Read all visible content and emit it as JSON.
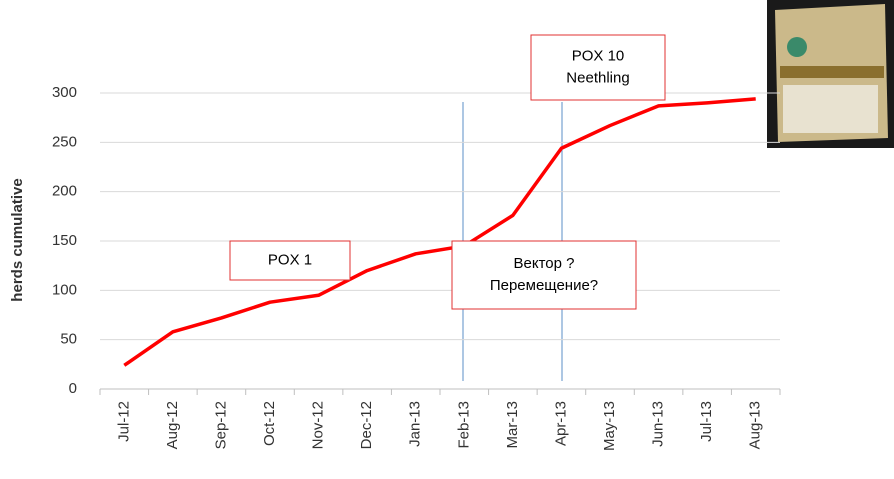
{
  "chart_data": {
    "type": "line",
    "y_label": "herds cumulative",
    "categories": [
      "Jul-12",
      "Aug-12",
      "Sep-12",
      "Oct-12",
      "Nov-12",
      "Dec-12",
      "Jan-13",
      "Feb-13",
      "Mar-13",
      "Apr-13",
      "May-13",
      "Jun-13",
      "Jul-13",
      "Aug-13"
    ],
    "series": [
      {
        "color": "#ff0000",
        "values": [
          24,
          58,
          72,
          88,
          95,
          120,
          137,
          145,
          176,
          244,
          267,
          287,
          290,
          294
        ]
      }
    ],
    "ylim": [
      0,
      300
    ],
    "yticks": [
      0,
      50,
      100,
      150,
      200,
      250,
      300
    ],
    "grid": true,
    "annotations": [
      {
        "lines": [
          "POX 1"
        ]
      },
      {
        "lines": [
          "Вектор ?",
          "Перемещение?"
        ]
      },
      {
        "lines": [
          "POX 10",
          "Neethling"
        ]
      }
    ]
  }
}
